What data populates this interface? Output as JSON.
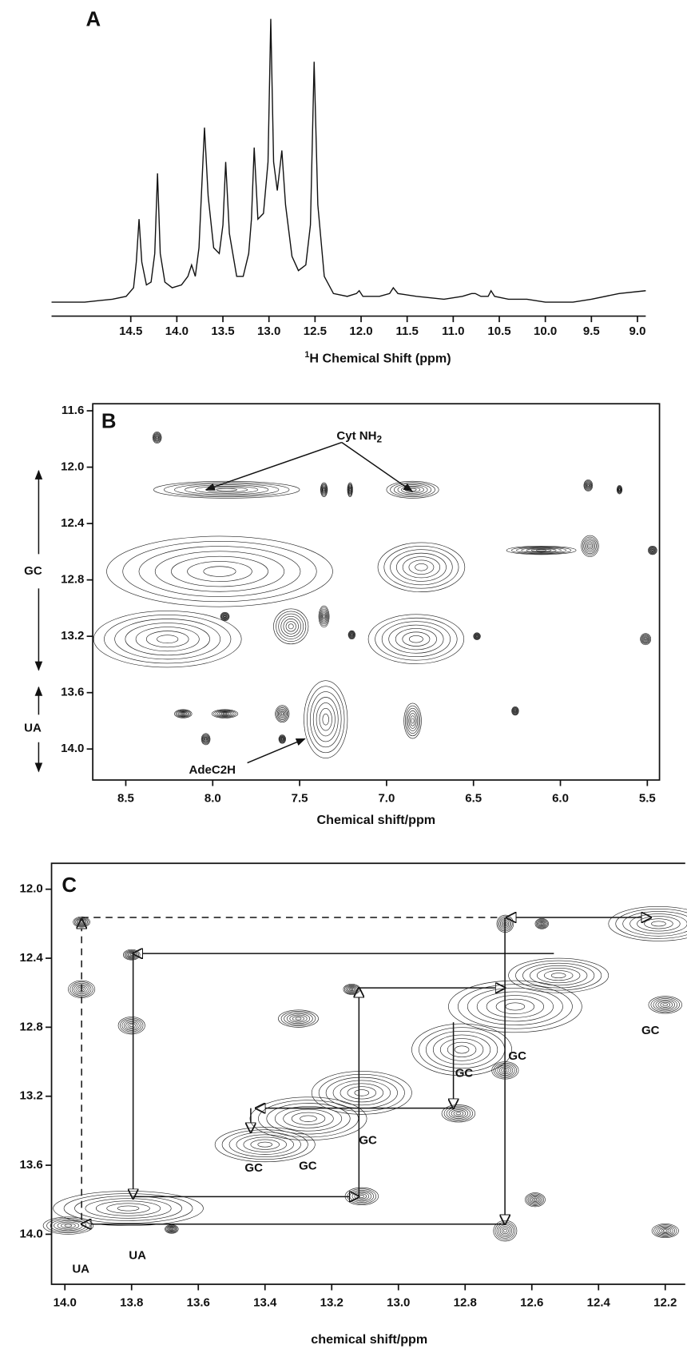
{
  "chart_data": [
    {
      "type": "line",
      "panel_label": "A",
      "x_label_sup": "1",
      "x_label": "H Chemical Shift (ppm)",
      "xlim": [
        15.36,
        8.91
      ],
      "xticks": [
        14.5,
        {
          "value": 14,
          "label": "14.0"
        },
        13.5,
        {
          "value": 13,
          "label": "13.0"
        },
        12.5,
        {
          "value": 12,
          "label": "12.0"
        },
        11.5,
        {
          "value": 11,
          "label": "11.0"
        },
        10.5,
        {
          "value": 10,
          "label": "10.0"
        },
        9.5,
        {
          "value": 9,
          "label": "9.0"
        }
      ],
      "x": [
        15.36,
        15.0,
        14.7,
        14.55,
        14.47,
        14.44,
        14.41,
        14.38,
        14.33,
        14.28,
        14.24,
        14.21,
        14.18,
        14.13,
        14.05,
        13.95,
        13.88,
        13.84,
        13.8,
        13.76,
        13.7,
        13.66,
        13.6,
        13.54,
        13.5,
        13.47,
        13.43,
        13.35,
        13.28,
        13.22,
        13.19,
        13.16,
        13.12,
        13.06,
        13.01,
        12.98,
        12.95,
        12.91,
        12.86,
        12.82,
        12.75,
        12.68,
        12.6,
        12.55,
        12.51,
        12.47,
        12.4,
        12.3,
        12.15,
        12.05,
        12.02,
        11.98,
        11.8,
        11.69,
        11.65,
        11.6,
        11.4,
        11.1,
        10.9,
        10.8,
        10.76,
        10.7,
        10.62,
        10.59,
        10.55,
        10.4,
        10.2,
        10.0,
        9.7,
        9.5,
        9.2,
        8.91
      ],
      "values": [
        1,
        1,
        2,
        3,
        6,
        15,
        30,
        15,
        7,
        8,
        18,
        46,
        18,
        8,
        6,
        7,
        10,
        14,
        10,
        20,
        62,
        38,
        20,
        18,
        28,
        50,
        25,
        10,
        10,
        18,
        30,
        55,
        30,
        32,
        50,
        100,
        50,
        40,
        54,
        35,
        17,
        12,
        14,
        28,
        85,
        35,
        10,
        4,
        3,
        4,
        5,
        3,
        3,
        4,
        6,
        4,
        3,
        2,
        3,
        4,
        4,
        3,
        3,
        5,
        3,
        2,
        2,
        1,
        1,
        2,
        4,
        5
      ],
      "color": "#111111"
    },
    {
      "type": "contour",
      "panel_label": "B",
      "x_label": "Chemical shift/ppm",
      "cyt_label": "Cyt NH",
      "cyt_sub": "2",
      "ade_label": "AdeC2H",
      "gc_label": "GC",
      "ua_label": "UA",
      "xlim": [
        8.69,
        5.43
      ],
      "ylim": [
        11.55,
        14.22
      ],
      "xticks": [
        8.5,
        {
          "value": 8,
          "label": "8.0"
        },
        7.5,
        {
          "value": 7,
          "label": "7.0"
        },
        6.5,
        {
          "value": 6,
          "label": "6.0"
        },
        5.5
      ],
      "yticks": [
        11.6,
        {
          "value": 12,
          "label": "12.0"
        },
        12.4,
        12.8,
        13.2,
        13.6,
        {
          "value": 14,
          "label": "14.0"
        }
      ],
      "x": [
        8.32,
        7.92,
        7.36,
        7.21,
        6.85,
        5.84,
        5.66,
        7.96,
        6.8,
        6.11,
        5.83,
        5.47,
        8.26,
        7.93,
        7.55,
        7.36,
        7.2,
        6.83,
        6.48,
        5.51,
        8.17,
        7.93,
        7.6,
        7.35,
        6.85,
        6.26,
        8.04,
        7.6
      ],
      "values": [
        11.79,
        12.16,
        12.16,
        12.16,
        12.16,
        12.13,
        12.16,
        12.74,
        12.71,
        12.59,
        12.56,
        12.59,
        13.22,
        13.06,
        13.13,
        13.06,
        13.19,
        13.22,
        13.2,
        13.22,
        13.75,
        13.75,
        13.75,
        13.79,
        13.8,
        13.73,
        13.93,
        13.93
      ],
      "x_widths": [
        0.05,
        0.84,
        0.04,
        0.03,
        0.3,
        0.05,
        0.03,
        1.3,
        0.5,
        0.4,
        0.1,
        0.05,
        0.85,
        0.05,
        0.2,
        0.06,
        0.04,
        0.55,
        0.04,
        0.06,
        0.1,
        0.15,
        0.08,
        0.25,
        0.1,
        0.04,
        0.05,
        0.04
      ],
      "y_widths": [
        0.08,
        0.12,
        0.1,
        0.1,
        0.12,
        0.08,
        0.06,
        0.5,
        0.35,
        0.06,
        0.15,
        0.06,
        0.4,
        0.06,
        0.25,
        0.15,
        0.06,
        0.35,
        0.05,
        0.08,
        0.06,
        0.06,
        0.12,
        0.55,
        0.25,
        0.06,
        0.08,
        0.06
      ],
      "color": "#222222"
    },
    {
      "type": "contour",
      "panel_label": "C",
      "x_label": "chemical shift/ppm",
      "pair_labels": [
        "GC",
        "GC",
        "GC",
        "GC",
        "GC",
        "GC",
        "UA",
        "UA"
      ],
      "xlim": [
        14.04,
        12.14
      ],
      "ylim": [
        11.85,
        14.29
      ],
      "xticks": [
        {
          "value": 14,
          "label": "14.0"
        },
        13.8,
        13.6,
        13.4,
        13.2,
        {
          "value": 13,
          "label": "13.0"
        },
        12.8,
        12.6,
        12.4,
        12.2
      ],
      "yticks": [
        {
          "value": 12,
          "label": "12.0"
        },
        12.4,
        12.8,
        13.2,
        13.6,
        {
          "value": 14,
          "label": "14.0"
        }
      ],
      "x": [
        13.95,
        13.95,
        13.8,
        13.8,
        13.81,
        13.99,
        13.68,
        13.3,
        13.14,
        13.4,
        13.27,
        13.11,
        13.11,
        12.81,
        12.65,
        12.52,
        12.68,
        12.57,
        12.59,
        12.68,
        12.82,
        12.68,
        12.22,
        12.2,
        12.2
      ],
      "values": [
        12.19,
        12.58,
        12.38,
        12.79,
        13.85,
        13.95,
        13.97,
        12.75,
        12.58,
        13.48,
        13.33,
        13.18,
        13.78,
        12.93,
        12.68,
        12.5,
        12.2,
        12.2,
        13.8,
        13.98,
        13.3,
        13.05,
        12.2,
        12.67,
        13.98
      ],
      "x_widths": [
        0.05,
        0.08,
        0.05,
        0.08,
        0.45,
        0.15,
        0.04,
        0.12,
        0.05,
        0.3,
        0.35,
        0.3,
        0.1,
        0.3,
        0.4,
        0.3,
        0.05,
        0.04,
        0.06,
        0.07,
        0.1,
        0.08,
        0.3,
        0.1,
        0.08
      ],
      "y_widths": [
        0.06,
        0.1,
        0.06,
        0.1,
        0.2,
        0.1,
        0.05,
        0.1,
        0.06,
        0.2,
        0.25,
        0.25,
        0.1,
        0.3,
        0.3,
        0.2,
        0.1,
        0.06,
        0.08,
        0.12,
        0.1,
        0.1,
        0.2,
        0.1,
        0.08
      ],
      "color": "#222222"
    }
  ]
}
